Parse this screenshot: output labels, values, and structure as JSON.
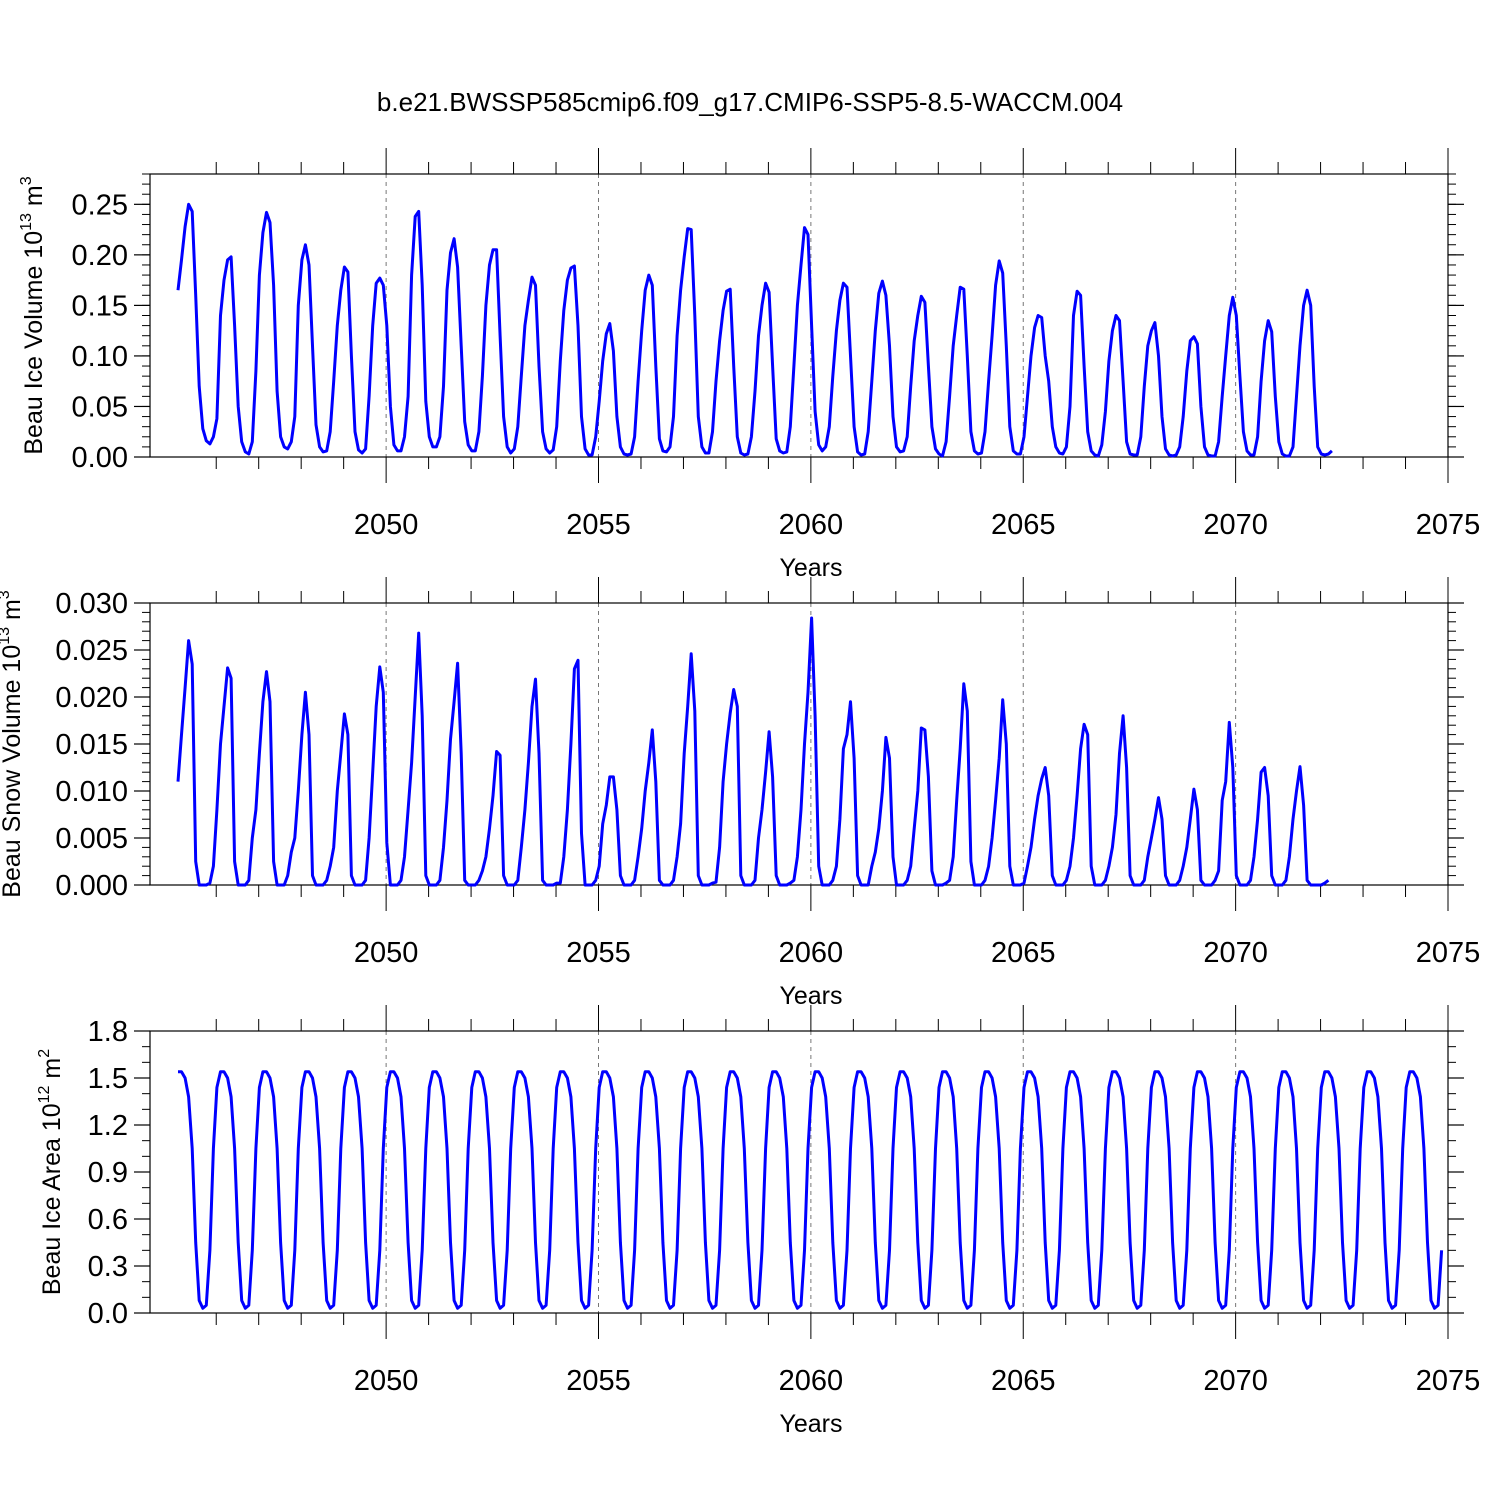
{
  "title": "b.e21.BWSSP585cmip6.f09_g17.CMIP6-SSP5-8.5-WACCM.004",
  "chart_data": [
    {
      "type": "line",
      "ylabel": "Beau Ice Volume 10",
      "ylabel_sup": "13",
      "ylabel_unit": " m",
      "ylabel_unit_sup": "3",
      "xlabel": "Years",
      "xlim": [
        2045.1,
        2075.0
      ],
      "ylim": [
        0,
        0.28
      ],
      "yticks": [
        0.0,
        0.05,
        0.1,
        0.15,
        0.2,
        0.25
      ],
      "yticklabels": [
        "0.00",
        "0.05",
        "0.10",
        "0.15",
        "0.20",
        "0.25"
      ],
      "yminor": 0.01,
      "xticks": [
        2050,
        2055,
        2060,
        2065,
        2070,
        2075
      ],
      "xticklabels": [
        "2050",
        "2055",
        "2060",
        "2065",
        "2070",
        "2075"
      ],
      "grid_x": [
        2050,
        2055,
        2060,
        2065,
        2070
      ],
      "color": "#0000ff",
      "x_start": 2045.1,
      "x_step": 0.08333333,
      "values": [
        0.165,
        0.195,
        0.228,
        0.25,
        0.243,
        0.16,
        0.07,
        0.028,
        0.016,
        0.013,
        0.02,
        0.038,
        0.14,
        0.175,
        0.195,
        0.198,
        0.13,
        0.05,
        0.015,
        0.005,
        0.003,
        0.015,
        0.085,
        0.18,
        0.222,
        0.242,
        0.232,
        0.17,
        0.065,
        0.02,
        0.01,
        0.008,
        0.015,
        0.04,
        0.15,
        0.195,
        0.21,
        0.19,
        0.11,
        0.032,
        0.01,
        0.005,
        0.006,
        0.025,
        0.075,
        0.13,
        0.165,
        0.188,
        0.183,
        0.1,
        0.025,
        0.007,
        0.004,
        0.008,
        0.06,
        0.13,
        0.172,
        0.177,
        0.17,
        0.13,
        0.05,
        0.012,
        0.006,
        0.006,
        0.02,
        0.06,
        0.18,
        0.238,
        0.243,
        0.17,
        0.055,
        0.02,
        0.01,
        0.01,
        0.02,
        0.07,
        0.165,
        0.202,
        0.216,
        0.188,
        0.11,
        0.035,
        0.012,
        0.006,
        0.006,
        0.025,
        0.08,
        0.15,
        0.19,
        0.205,
        0.205,
        0.12,
        0.04,
        0.01,
        0.004,
        0.008,
        0.03,
        0.08,
        0.13,
        0.155,
        0.178,
        0.17,
        0.09,
        0.025,
        0.008,
        0.004,
        0.007,
        0.03,
        0.095,
        0.145,
        0.175,
        0.187,
        0.189,
        0.13,
        0.04,
        0.008,
        0.002,
        0.002,
        0.02,
        0.055,
        0.095,
        0.122,
        0.132,
        0.105,
        0.04,
        0.01,
        0.003,
        0.002,
        0.003,
        0.02,
        0.075,
        0.125,
        0.165,
        0.18,
        0.17,
        0.09,
        0.018,
        0.006,
        0.005,
        0.01,
        0.04,
        0.12,
        0.165,
        0.198,
        0.226,
        0.225,
        0.14,
        0.04,
        0.01,
        0.004,
        0.004,
        0.025,
        0.075,
        0.115,
        0.145,
        0.164,
        0.166,
        0.09,
        0.02,
        0.004,
        0.002,
        0.003,
        0.02,
        0.065,
        0.12,
        0.15,
        0.172,
        0.163,
        0.09,
        0.018,
        0.006,
        0.004,
        0.005,
        0.03,
        0.09,
        0.15,
        0.19,
        0.227,
        0.22,
        0.13,
        0.045,
        0.012,
        0.006,
        0.01,
        0.03,
        0.08,
        0.125,
        0.155,
        0.172,
        0.168,
        0.1,
        0.03,
        0.005,
        0.002,
        0.003,
        0.025,
        0.075,
        0.125,
        0.162,
        0.174,
        0.16,
        0.11,
        0.04,
        0.01,
        0.005,
        0.006,
        0.02,
        0.07,
        0.115,
        0.14,
        0.159,
        0.153,
        0.09,
        0.03,
        0.008,
        0.003,
        0.001,
        0.015,
        0.06,
        0.11,
        0.14,
        0.168,
        0.166,
        0.1,
        0.025,
        0.006,
        0.003,
        0.004,
        0.025,
        0.075,
        0.12,
        0.17,
        0.194,
        0.182,
        0.11,
        0.03,
        0.006,
        0.003,
        0.003,
        0.02,
        0.06,
        0.1,
        0.128,
        0.14,
        0.138,
        0.1,
        0.075,
        0.03,
        0.01,
        0.004,
        0.003,
        0.01,
        0.05,
        0.14,
        0.164,
        0.16,
        0.09,
        0.025,
        0.006,
        0.002,
        0.001,
        0.012,
        0.045,
        0.095,
        0.125,
        0.14,
        0.135,
        0.075,
        0.015,
        0.003,
        0.002,
        0.002,
        0.02,
        0.07,
        0.11,
        0.125,
        0.133,
        0.1,
        0.04,
        0.008,
        0.002,
        0.001,
        0.002,
        0.01,
        0.04,
        0.085,
        0.115,
        0.119,
        0.112,
        0.05,
        0.01,
        0.002,
        0.001,
        0.001,
        0.015,
        0.06,
        0.1,
        0.14,
        0.158,
        0.14,
        0.08,
        0.025,
        0.006,
        0.002,
        0.002,
        0.02,
        0.075,
        0.115,
        0.135,
        0.124,
        0.06,
        0.015,
        0.003,
        0.001,
        0.001,
        0.01,
        0.06,
        0.11,
        0.15,
        0.165,
        0.15,
        0.07,
        0.01,
        0.003,
        0.002,
        0.003,
        0.006
      ]
    },
    {
      "type": "line",
      "ylabel": "Beau Snow Volume 10",
      "ylabel_sup": "13",
      "ylabel_unit": " m",
      "ylabel_unit_sup": "3",
      "xlabel": "Years",
      "xlim": [
        2045.1,
        2075.0
      ],
      "ylim": [
        0,
        0.03
      ],
      "yticks": [
        0.0,
        0.005,
        0.01,
        0.015,
        0.02,
        0.025,
        0.03
      ],
      "yticklabels": [
        "0.000",
        "0.005",
        "0.010",
        "0.015",
        "0.020",
        "0.025",
        "0.030"
      ],
      "yminor": 0.001,
      "xticks": [
        2050,
        2055,
        2060,
        2065,
        2070,
        2075
      ],
      "xticklabels": [
        "2050",
        "2055",
        "2060",
        "2065",
        "2070",
        "2075"
      ],
      "grid_x": [
        2050,
        2055,
        2060,
        2065,
        2070
      ],
      "color": "#0000ff",
      "x_start": 2045.1,
      "x_step": 0.08333333,
      "values": [
        0.011,
        0.016,
        0.021,
        0.026,
        0.0235,
        0.0025,
        0.0,
        0.0,
        0.0,
        0.0002,
        0.002,
        0.008,
        0.015,
        0.019,
        0.0231,
        0.022,
        0.0025,
        0.0,
        0.0,
        0.0,
        0.0005,
        0.005,
        0.008,
        0.014,
        0.0195,
        0.0227,
        0.0195,
        0.0025,
        0.0,
        0.0,
        0.0,
        0.001,
        0.0035,
        0.005,
        0.01,
        0.016,
        0.0205,
        0.016,
        0.001,
        0.0,
        0.0,
        0.0,
        0.0005,
        0.002,
        0.004,
        0.01,
        0.014,
        0.0182,
        0.016,
        0.001,
        0.0,
        0.0,
        0.0,
        0.0005,
        0.005,
        0.012,
        0.019,
        0.0232,
        0.0205,
        0.0045,
        0.0,
        0.0,
        0.0,
        0.0005,
        0.003,
        0.008,
        0.013,
        0.02,
        0.0268,
        0.018,
        0.001,
        0.0,
        0.0,
        0.0,
        0.0005,
        0.004,
        0.009,
        0.0155,
        0.0195,
        0.0236,
        0.014,
        0.0005,
        0.0,
        0.0,
        0.0,
        0.0005,
        0.0015,
        0.003,
        0.006,
        0.0095,
        0.0142,
        0.0138,
        0.001,
        0.0,
        0.0,
        0.0,
        0.0005,
        0.004,
        0.008,
        0.013,
        0.019,
        0.0219,
        0.014,
        0.0005,
        0.0,
        0.0,
        0.0,
        0.0002,
        0.0002,
        0.003,
        0.008,
        0.015,
        0.023,
        0.0239,
        0.0055,
        0.0,
        0.0,
        0.0,
        0.0005,
        0.002,
        0.0065,
        0.0085,
        0.0115,
        0.0115,
        0.008,
        0.001,
        0.0,
        0.0,
        0.0,
        0.0005,
        0.003,
        0.006,
        0.01,
        0.013,
        0.0165,
        0.011,
        0.0005,
        0.0,
        0.0,
        0.0,
        0.0005,
        0.003,
        0.0065,
        0.014,
        0.019,
        0.0246,
        0.0185,
        0.001,
        0.0,
        0.0,
        0.0,
        0.0002,
        0.0003,
        0.004,
        0.011,
        0.015,
        0.0183,
        0.0208,
        0.019,
        0.001,
        0.0,
        0.0,
        0.0,
        0.0005,
        0.005,
        0.008,
        0.012,
        0.0163,
        0.0115,
        0.001,
        0.0,
        0.0,
        0.0,
        0.0002,
        0.0005,
        0.003,
        0.008,
        0.015,
        0.0205,
        0.0284,
        0.018,
        0.002,
        0.0,
        0.0,
        0.0,
        0.0005,
        0.002,
        0.007,
        0.0145,
        0.016,
        0.0195,
        0.0135,
        0.001,
        0.0,
        0.0,
        0.0,
        0.002,
        0.0035,
        0.006,
        0.01,
        0.0157,
        0.0135,
        0.003,
        0.0,
        0.0,
        0.0,
        0.0005,
        0.002,
        0.006,
        0.01,
        0.0167,
        0.0165,
        0.0115,
        0.0015,
        0.0,
        0.0,
        0.0,
        0.0002,
        0.0005,
        0.003,
        0.009,
        0.0145,
        0.0214,
        0.0185,
        0.0025,
        0.0,
        0.0,
        0.0,
        0.0005,
        0.002,
        0.005,
        0.009,
        0.0135,
        0.0197,
        0.015,
        0.002,
        0.0,
        0.0,
        0.0,
        0.0002,
        0.002,
        0.004,
        0.007,
        0.0095,
        0.0113,
        0.0125,
        0.0095,
        0.001,
        0.0,
        0.0,
        0.0,
        0.0005,
        0.002,
        0.005,
        0.0095,
        0.0145,
        0.0171,
        0.016,
        0.002,
        0.0,
        0.0,
        0.0,
        0.0005,
        0.002,
        0.004,
        0.0075,
        0.014,
        0.018,
        0.0125,
        0.001,
        0.0,
        0.0,
        0.0,
        0.0005,
        0.003,
        0.005,
        0.007,
        0.0093,
        0.007,
        0.001,
        0.0,
        0.0,
        0.0,
        0.0005,
        0.002,
        0.004,
        0.007,
        0.0102,
        0.008,
        0.0005,
        0.0,
        0.0,
        0.0,
        0.0005,
        0.0015,
        0.009,
        0.011,
        0.0173,
        0.0125,
        0.001,
        0.0,
        0.0,
        0.0,
        0.0005,
        0.003,
        0.007,
        0.012,
        0.0125,
        0.0095,
        0.001,
        0.0,
        0.0,
        0.0,
        0.0005,
        0.003,
        0.007,
        0.01,
        0.0126,
        0.0085,
        0.0005,
        0.0,
        0.0,
        0.0,
        0.0,
        0.0002,
        0.0005
      ]
    },
    {
      "type": "line",
      "ylabel": "Beau Ice Area 10",
      "ylabel_sup": "12",
      "ylabel_unit": " m",
      "ylabel_unit_sup": "2",
      "xlabel": "Years",
      "xlim": [
        2045.1,
        2075.0
      ],
      "ylim": [
        0,
        1.8
      ],
      "yticks": [
        0.0,
        0.3,
        0.6,
        0.9,
        1.2,
        1.5,
        1.8
      ],
      "yticklabels": [
        "0.0",
        "0.3",
        "0.6",
        "0.9",
        "1.2",
        "1.5",
        "1.8"
      ],
      "yminor": 0.1,
      "xticks": [
        2050,
        2055,
        2060,
        2065,
        2070,
        2075
      ],
      "xticklabels": [
        "2050",
        "2055",
        "2060",
        "2065",
        "2070",
        "2075"
      ],
      "grid_x": [
        2050,
        2055,
        2060,
        2065,
        2070
      ],
      "color": "#0000ff",
      "x_start": 2045.1,
      "x_step": 0.08333333,
      "cycle_peak": 1.54,
      "cycle_min": 0.02,
      "n_cycles": 30,
      "values": []
    }
  ]
}
